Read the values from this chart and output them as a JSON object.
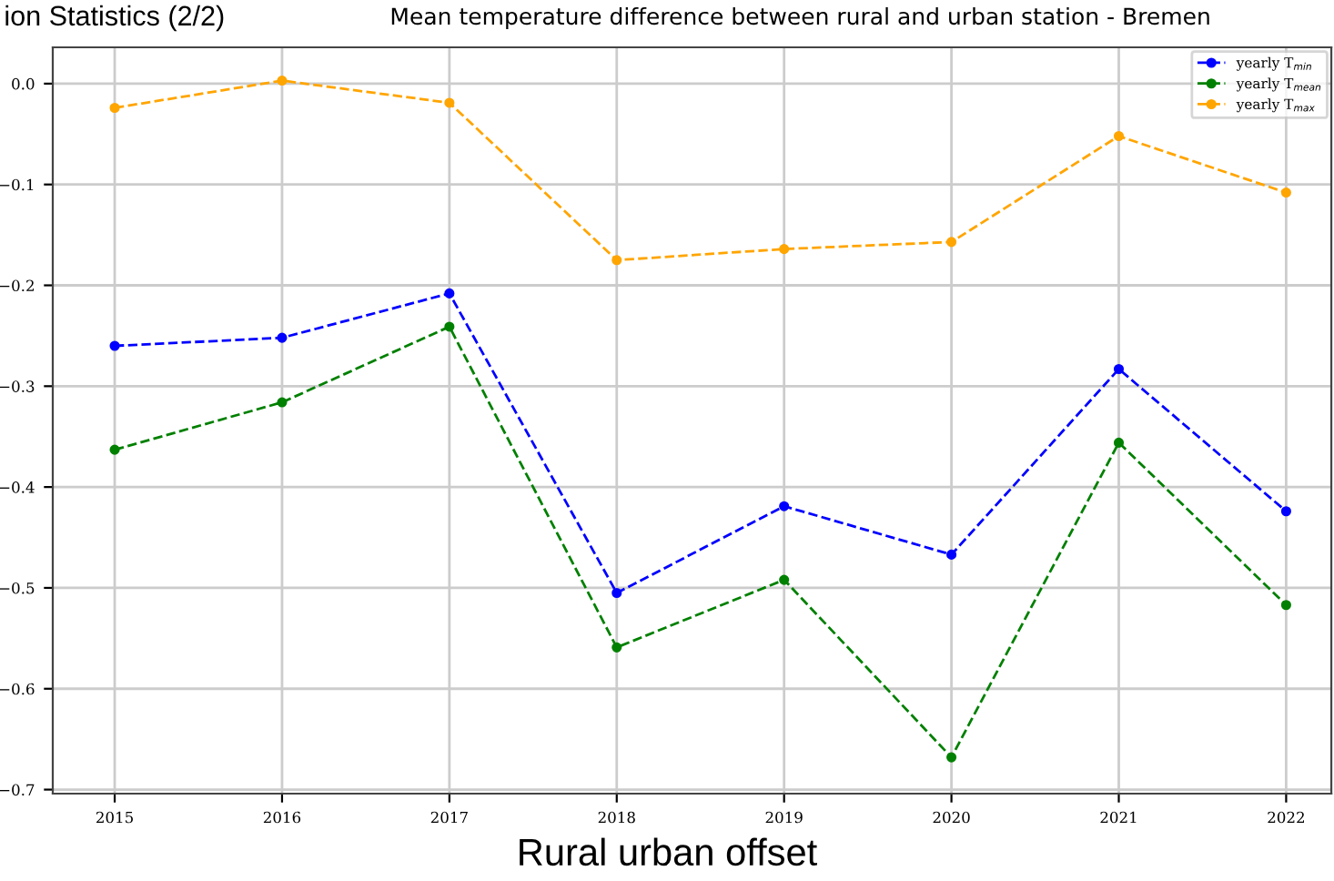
{
  "chart_data": {
    "type": "line",
    "title": "Mean temperature difference between rural and urban station - Bremen",
    "annotations": [
      "ion Statistics (2/2)",
      "Rural urban offset"
    ],
    "x": [
      2015,
      2016,
      2017,
      2018,
      2019,
      2020,
      2021,
      2022
    ],
    "series": [
      {
        "name": "yearly T$_{min}$",
        "color": "#0000ff",
        "values": [
          -0.26,
          -0.252,
          -0.208,
          -0.505,
          -0.419,
          -0.467,
          -0.283,
          -0.424
        ]
      },
      {
        "name": "yearly T$_{mean}$",
        "color": "#008000",
        "values": [
          -0.363,
          -0.316,
          -0.241,
          -0.559,
          -0.492,
          -0.668,
          -0.356,
          -0.517
        ]
      },
      {
        "name": "yearly T$_{max}$",
        "color": "#ffa500",
        "values": [
          -0.024,
          0.003,
          -0.019,
          -0.175,
          -0.164,
          -0.157,
          -0.052,
          -0.108
        ]
      }
    ],
    "xlim": [
      2014.63,
      2022.27
    ],
    "xticks": [
      2015,
      2016,
      2017,
      2018,
      2019,
      2020,
      2021,
      2022
    ],
    "ylim": [
      -0.704,
      0.036
    ],
    "yticks": [
      {
        "value": 0.0,
        "label": "0.0"
      },
      {
        "value": -0.1,
        "label": "−0.1"
      },
      {
        "value": -0.2,
        "label": "−0.2"
      },
      {
        "value": -0.3,
        "label": "−0.3"
      },
      {
        "value": -0.4,
        "label": "−0.4"
      },
      {
        "value": -0.5,
        "label": "−0.5"
      },
      {
        "value": -0.6,
        "label": "−0.6"
      },
      {
        "value": -0.7,
        "label": "−0.7"
      }
    ],
    "grid": true,
    "legend": "top right",
    "marker": "circle",
    "line_style": "dashed"
  }
}
